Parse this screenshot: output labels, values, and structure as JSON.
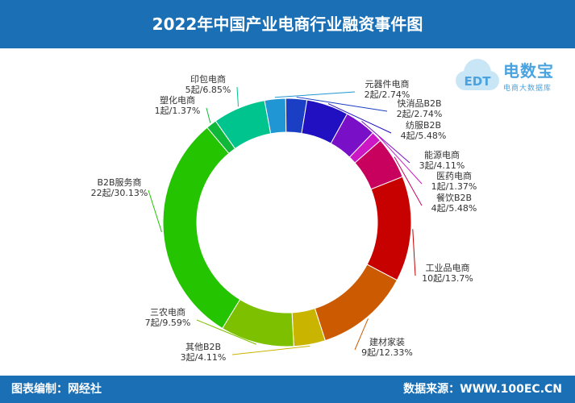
{
  "header": {
    "title": "2022年中国产业电商行业融资事件图"
  },
  "footer": {
    "left": "图表编制：网经社",
    "right": "数据来源：WWW.100EC.CN"
  },
  "logo": {
    "text": "电数宝",
    "subtitle": "电商大数据库",
    "mark": "EDT",
    "color": "#4aa3df"
  },
  "chart_data": {
    "type": "pie",
    "donut": true,
    "title": "2022年中国产业电商行业融资事件图",
    "series": [
      {
        "name": "元器件电商",
        "count": 2,
        "label": "2起/2.74%",
        "percent": 2.74,
        "color": "#2196d4"
      },
      {
        "name": "快消品B2B",
        "count": 2,
        "label": "2起/2.74%",
        "percent": 2.74,
        "color": "#1a3fc4"
      },
      {
        "name": "纺服B2B",
        "count": 4,
        "label": "4起/5.48%",
        "percent": 5.48,
        "color": "#2010c2"
      },
      {
        "name": "能源电商",
        "count": 3,
        "label": "3起/4.11%",
        "percent": 4.11,
        "color": "#7a0fc8"
      },
      {
        "name": "医药电商",
        "count": 1,
        "label": "1起/1.37%",
        "percent": 1.37,
        "color": "#cc18c4"
      },
      {
        "name": "餐饮B2B",
        "count": 4,
        "label": "4起/5.48%",
        "percent": 5.48,
        "color": "#c8005e"
      },
      {
        "name": "工业品电商",
        "count": 10,
        "label": "10起/13.7%",
        "percent": 13.7,
        "color": "#c70000"
      },
      {
        "name": "建材家装",
        "count": 9,
        "label": "9起/12.33%",
        "percent": 12.33,
        "color": "#cc5a00"
      },
      {
        "name": "其他B2B",
        "count": 3,
        "label": "3起/4.11%",
        "percent": 4.11,
        "color": "#c9b400"
      },
      {
        "name": "三农电商",
        "count": 7,
        "label": "7起/9.59%",
        "percent": 9.59,
        "color": "#7dc000"
      },
      {
        "name": "B2B服务商",
        "count": 22,
        "label": "22起/30.13%",
        "percent": 30.13,
        "color": "#24c400"
      },
      {
        "name": "塑化电商",
        "count": 1,
        "label": "1起/1.37%",
        "percent": 1.37,
        "color": "#10b83a"
      },
      {
        "name": "印包电商",
        "count": 5,
        "label": "5起/6.85%",
        "percent": 6.85,
        "color": "#00c48e"
      }
    ]
  }
}
